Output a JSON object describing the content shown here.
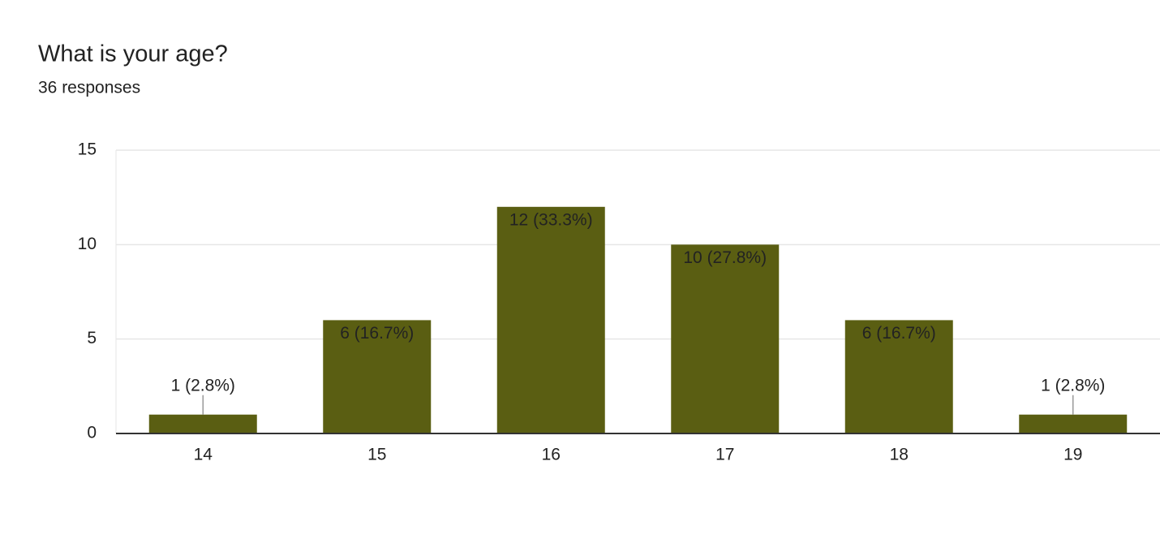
{
  "chart_data": {
    "type": "bar",
    "title": "What is your age?",
    "subtitle": "36 responses",
    "categories": [
      "14",
      "15",
      "16",
      "17",
      "18",
      "19"
    ],
    "values": [
      1,
      6,
      12,
      10,
      6,
      1
    ],
    "value_labels": [
      "1 (2.8%)",
      "6 (16.7%)",
      "12 (33.3%)",
      "10 (27.8%)",
      "6 (16.7%)",
      "1 (2.8%)"
    ],
    "color": "#5a5e12",
    "ylim": [
      0,
      15
    ],
    "yticks": [
      0,
      5,
      10,
      15
    ],
    "grid": true
  }
}
